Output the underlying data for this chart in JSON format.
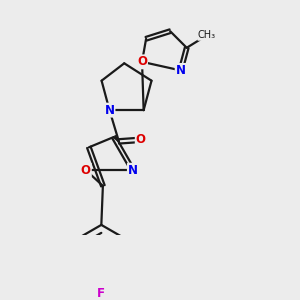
{
  "bg_color": "#ececec",
  "bond_color": "#1a1a1a",
  "bond_width": 1.6,
  "atom_colors": {
    "N": "#0000ee",
    "O": "#dd0000",
    "F": "#cc00cc",
    "C": "#1a1a1a"
  },
  "figsize": [
    3.0,
    3.0
  ],
  "dpi": 100
}
